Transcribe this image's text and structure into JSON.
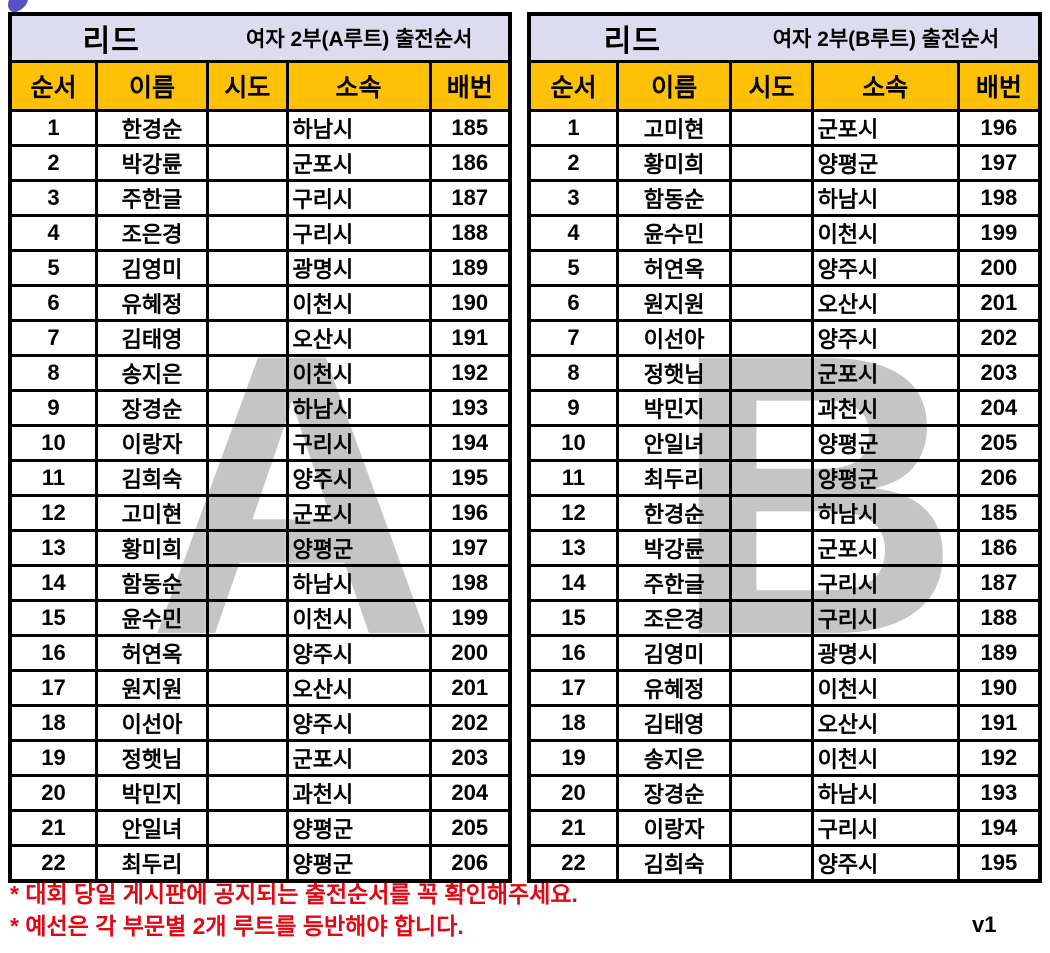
{
  "page": {
    "lavender": "#dcdcee",
    "orange": "#ffc008",
    "note_color": "#e30613",
    "watermark_color": "rgba(45,45,45,0.28)"
  },
  "tables": [
    {
      "watermark": "A",
      "title": "리드",
      "subtitle": "여자 2부(A루트) 출전순서",
      "columns": [
        "순서",
        "이름",
        "시도",
        "소속",
        "배번"
      ],
      "rows": [
        {
          "order": "1",
          "name": "한경순",
          "sido": "",
          "affiliation": "하남시",
          "bib": "185"
        },
        {
          "order": "2",
          "name": "박강륜",
          "sido": "",
          "affiliation": "군포시",
          "bib": "186"
        },
        {
          "order": "3",
          "name": "주한글",
          "sido": "",
          "affiliation": "구리시",
          "bib": "187"
        },
        {
          "order": "4",
          "name": "조은경",
          "sido": "",
          "affiliation": "구리시",
          "bib": "188"
        },
        {
          "order": "5",
          "name": "김영미",
          "sido": "",
          "affiliation": "광명시",
          "bib": "189"
        },
        {
          "order": "6",
          "name": "유혜정",
          "sido": "",
          "affiliation": "이천시",
          "bib": "190"
        },
        {
          "order": "7",
          "name": "김태영",
          "sido": "",
          "affiliation": "오산시",
          "bib": "191"
        },
        {
          "order": "8",
          "name": "송지은",
          "sido": "",
          "affiliation": "이천시",
          "bib": "192"
        },
        {
          "order": "9",
          "name": "장경순",
          "sido": "",
          "affiliation": "하남시",
          "bib": "193"
        },
        {
          "order": "10",
          "name": "이랑자",
          "sido": "",
          "affiliation": "구리시",
          "bib": "194"
        },
        {
          "order": "11",
          "name": "김희숙",
          "sido": "",
          "affiliation": "양주시",
          "bib": "195"
        },
        {
          "order": "12",
          "name": "고미현",
          "sido": "",
          "affiliation": "군포시",
          "bib": "196"
        },
        {
          "order": "13",
          "name": "황미희",
          "sido": "",
          "affiliation": "양평군",
          "bib": "197"
        },
        {
          "order": "14",
          "name": "함동순",
          "sido": "",
          "affiliation": "하남시",
          "bib": "198"
        },
        {
          "order": "15",
          "name": "윤수민",
          "sido": "",
          "affiliation": "이천시",
          "bib": "199"
        },
        {
          "order": "16",
          "name": "허연옥",
          "sido": "",
          "affiliation": "양주시",
          "bib": "200"
        },
        {
          "order": "17",
          "name": "원지원",
          "sido": "",
          "affiliation": "오산시",
          "bib": "201"
        },
        {
          "order": "18",
          "name": "이선아",
          "sido": "",
          "affiliation": "양주시",
          "bib": "202"
        },
        {
          "order": "19",
          "name": "정햇님",
          "sido": "",
          "affiliation": "군포시",
          "bib": "203"
        },
        {
          "order": "20",
          "name": "박민지",
          "sido": "",
          "affiliation": "과천시",
          "bib": "204"
        },
        {
          "order": "21",
          "name": "안일녀",
          "sido": "",
          "affiliation": "양평군",
          "bib": "205"
        },
        {
          "order": "22",
          "name": "최두리",
          "sido": "",
          "affiliation": "양평군",
          "bib": "206"
        }
      ]
    },
    {
      "watermark": "B",
      "title": "리드",
      "subtitle": "여자 2부(B루트) 출전순서",
      "columns": [
        "순서",
        "이름",
        "시도",
        "소속",
        "배번"
      ],
      "rows": [
        {
          "order": "1",
          "name": "고미현",
          "sido": "",
          "affiliation": "군포시",
          "bib": "196"
        },
        {
          "order": "2",
          "name": "황미희",
          "sido": "",
          "affiliation": "양평군",
          "bib": "197"
        },
        {
          "order": "3",
          "name": "함동순",
          "sido": "",
          "affiliation": "하남시",
          "bib": "198"
        },
        {
          "order": "4",
          "name": "윤수민",
          "sido": "",
          "affiliation": "이천시",
          "bib": "199"
        },
        {
          "order": "5",
          "name": "허연옥",
          "sido": "",
          "affiliation": "양주시",
          "bib": "200"
        },
        {
          "order": "6",
          "name": "원지원",
          "sido": "",
          "affiliation": "오산시",
          "bib": "201"
        },
        {
          "order": "7",
          "name": "이선아",
          "sido": "",
          "affiliation": "양주시",
          "bib": "202"
        },
        {
          "order": "8",
          "name": "정햇님",
          "sido": "",
          "affiliation": "군포시",
          "bib": "203"
        },
        {
          "order": "9",
          "name": "박민지",
          "sido": "",
          "affiliation": "과천시",
          "bib": "204"
        },
        {
          "order": "10",
          "name": "안일녀",
          "sido": "",
          "affiliation": "양평군",
          "bib": "205"
        },
        {
          "order": "11",
          "name": "최두리",
          "sido": "",
          "affiliation": "양평군",
          "bib": "206"
        },
        {
          "order": "12",
          "name": "한경순",
          "sido": "",
          "affiliation": "하남시",
          "bib": "185"
        },
        {
          "order": "13",
          "name": "박강륜",
          "sido": "",
          "affiliation": "군포시",
          "bib": "186"
        },
        {
          "order": "14",
          "name": "주한글",
          "sido": "",
          "affiliation": "구리시",
          "bib": "187"
        },
        {
          "order": "15",
          "name": "조은경",
          "sido": "",
          "affiliation": "구리시",
          "bib": "188"
        },
        {
          "order": "16",
          "name": "김영미",
          "sido": "",
          "affiliation": "광명시",
          "bib": "189"
        },
        {
          "order": "17",
          "name": "유혜정",
          "sido": "",
          "affiliation": "이천시",
          "bib": "190"
        },
        {
          "order": "18",
          "name": "김태영",
          "sido": "",
          "affiliation": "오산시",
          "bib": "191"
        },
        {
          "order": "19",
          "name": "송지은",
          "sido": "",
          "affiliation": "이천시",
          "bib": "192"
        },
        {
          "order": "20",
          "name": "장경순",
          "sido": "",
          "affiliation": "하남시",
          "bib": "193"
        },
        {
          "order": "21",
          "name": "이랑자",
          "sido": "",
          "affiliation": "구리시",
          "bib": "194"
        },
        {
          "order": "22",
          "name": "김희숙",
          "sido": "",
          "affiliation": "양주시",
          "bib": "195"
        }
      ]
    }
  ],
  "notes": [
    "* 대회 당일 게시판에 공지되는 출전순서를 꼭 확인해주세요.",
    "* 예선은 각 부문별 2개 루트를 등반해야 합니다."
  ],
  "version": "v1"
}
